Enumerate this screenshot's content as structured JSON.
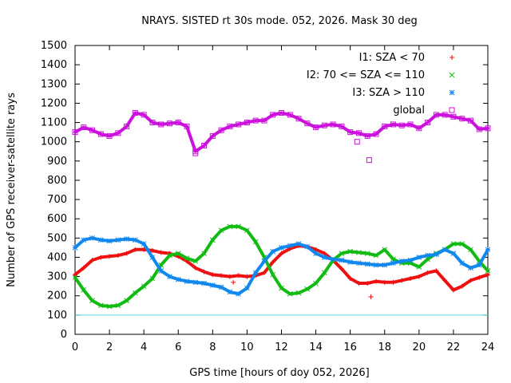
{
  "chart_data": {
    "type": "scatter",
    "title": "NRAYS. SISTED rt 30s mode. 052, 2026. Mask 30 deg",
    "xlabel": "GPS time [hours of doy 052, 2026]",
    "ylabel": "Number of GPS receiver-satellite rays",
    "xlim": [
      0,
      24
    ],
    "ylim": [
      0,
      1500
    ],
    "x_ticks": [
      "0",
      "2",
      "4",
      "6",
      "8",
      "10",
      "12",
      "14",
      "16",
      "18",
      "20",
      "22",
      "24"
    ],
    "y_ticks": [
      "0",
      "100",
      "200",
      "300",
      "400",
      "500",
      "600",
      "700",
      "800",
      "900",
      "1000",
      "1100",
      "1200",
      "1300",
      "1400",
      "1500"
    ],
    "legend_position": "top-right",
    "reference_line": {
      "y": 100,
      "color": "#55dddd"
    },
    "series": [
      {
        "name": "I1: SZA < 70",
        "marker": "+",
        "color": "#ee1111",
        "x": [
          0,
          0.5,
          1,
          1.5,
          2,
          2.5,
          3,
          3.5,
          4,
          4.5,
          5,
          5.5,
          6,
          6.5,
          7,
          7.5,
          8,
          8.5,
          9,
          9.5,
          10,
          10.5,
          11,
          11.5,
          12,
          12.5,
          13,
          13.5,
          14,
          14.5,
          15,
          15.5,
          16,
          16.5,
          17,
          17.5,
          18,
          18.5,
          19,
          19.5,
          20,
          20.5,
          21,
          21.5,
          22,
          22.5,
          23,
          23.5,
          24
        ],
        "values": [
          310,
          345,
          385,
          400,
          405,
          410,
          420,
          440,
          440,
          435,
          425,
          420,
          405,
          380,
          345,
          325,
          310,
          305,
          300,
          305,
          300,
          305,
          320,
          375,
          420,
          445,
          460,
          455,
          440,
          420,
          385,
          340,
          290,
          265,
          265,
          275,
          270,
          270,
          280,
          290,
          300,
          320,
          330,
          280,
          230,
          250,
          280,
          295,
          310
        ]
      },
      {
        "name": "I2: 70 <= SZA <= 110",
        "marker": "x",
        "color": "#11bb11",
        "x": [
          0,
          0.5,
          1,
          1.5,
          2,
          2.5,
          3,
          3.5,
          4,
          4.5,
          5,
          5.5,
          6,
          6.5,
          7,
          7.5,
          8,
          8.5,
          9,
          9.5,
          10,
          10.5,
          11,
          11.5,
          12,
          12.5,
          13,
          13.5,
          14,
          14.5,
          15,
          15.5,
          16,
          16.5,
          17,
          17.5,
          18,
          18.5,
          19,
          19.5,
          20,
          20.5,
          21,
          21.5,
          22,
          22.5,
          23,
          23.5,
          24
        ],
        "values": [
          295,
          230,
          175,
          150,
          145,
          150,
          175,
          215,
          250,
          290,
          360,
          410,
          420,
          395,
          380,
          420,
          490,
          540,
          560,
          560,
          540,
          480,
          400,
          310,
          240,
          210,
          215,
          235,
          265,
          320,
          385,
          420,
          430,
          425,
          420,
          410,
          440,
          390,
          370,
          370,
          350,
          390,
          420,
          440,
          470,
          470,
          440,
          380,
          330
        ]
      },
      {
        "name": "I3: SZA > 110",
        "marker": "*",
        "color": "#1188ee",
        "x": [
          0,
          0.5,
          1,
          1.5,
          2,
          2.5,
          3,
          3.5,
          4,
          4.5,
          5,
          5.5,
          6,
          6.5,
          7,
          7.5,
          8,
          8.5,
          9,
          9.5,
          10,
          10.5,
          11,
          11.5,
          12,
          12.5,
          13,
          13.5,
          14,
          14.5,
          15,
          15.5,
          16,
          16.5,
          17,
          17.5,
          18,
          18.5,
          19,
          19.5,
          20,
          20.5,
          21,
          21.5,
          22,
          22.5,
          23,
          23.5,
          24
        ],
        "values": [
          450,
          490,
          500,
          490,
          485,
          490,
          495,
          490,
          470,
          400,
          330,
          300,
          285,
          275,
          270,
          265,
          255,
          245,
          220,
          210,
          240,
          320,
          380,
          430,
          450,
          460,
          470,
          455,
          420,
          400,
          390,
          385,
          375,
          370,
          365,
          360,
          360,
          370,
          380,
          385,
          400,
          410,
          415,
          440,
          420,
          370,
          345,
          360,
          440
        ]
      },
      {
        "name": "global",
        "marker": "square",
        "color": "#cc11dd",
        "x": [
          0,
          0.5,
          1,
          1.5,
          2,
          2.5,
          3,
          3.5,
          4,
          4.5,
          5,
          5.5,
          6,
          6.5,
          7,
          7.5,
          8,
          8.5,
          9,
          9.5,
          10,
          10.5,
          11,
          11.5,
          12,
          12.5,
          13,
          13.5,
          14,
          14.5,
          15,
          15.5,
          16,
          16.5,
          17,
          17.5,
          18,
          18.5,
          19,
          19.5,
          20,
          20.5,
          21,
          21.5,
          22,
          22.5,
          23,
          23.5,
          24
        ],
        "values": [
          1050,
          1075,
          1060,
          1040,
          1030,
          1045,
          1080,
          1150,
          1140,
          1100,
          1090,
          1095,
          1100,
          1080,
          950,
          980,
          1030,
          1060,
          1080,
          1090,
          1100,
          1110,
          1110,
          1140,
          1150,
          1140,
          1120,
          1095,
          1075,
          1085,
          1090,
          1080,
          1050,
          1045,
          1030,
          1040,
          1080,
          1090,
          1085,
          1090,
          1070,
          1100,
          1140,
          1140,
          1130,
          1120,
          1110,
          1065,
          1070
        ]
      }
    ],
    "outliers": [
      {
        "series": "global",
        "x": [
          17.1,
          16.4,
          7.0
        ],
        "values": [
          905,
          1000,
          940
        ]
      },
      {
        "series": "I1: SZA < 70",
        "x": [
          17.2,
          9.2
        ],
        "values": [
          195,
          270
        ]
      }
    ]
  }
}
